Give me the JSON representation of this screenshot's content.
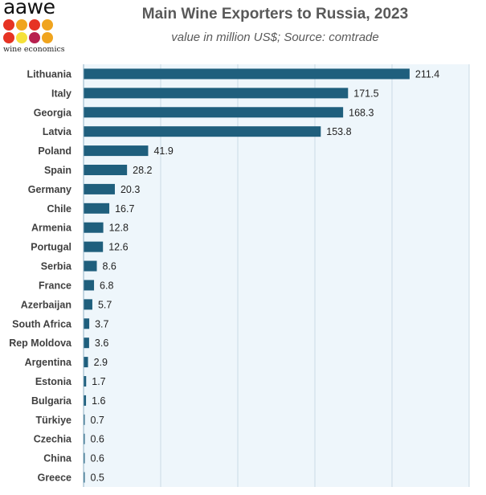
{
  "logo": {
    "name": "aawe",
    "tagline": "wine economics",
    "dot_colors": [
      "#e63323",
      "#f0a41e",
      "#e63323",
      "#f0a41e",
      "#e63323",
      "#f5e13a",
      "#b8214f",
      "#f0a41e"
    ]
  },
  "chart_data": {
    "type": "bar",
    "orientation": "horizontal",
    "title": "Main Wine Exporters to Russia, 2023",
    "subtitle": "value in million US$; Source: comtrade",
    "categories": [
      "Lithuania",
      "Italy",
      "Georgia",
      "Latvia",
      "Poland",
      "Spain",
      "Germany",
      "Chile",
      "Armenia",
      "Portugal",
      "Serbia",
      "France",
      "Azerbaijan",
      "South Africa",
      "Rep Moldova",
      "Argentina",
      "Estonia",
      "Bulgaria",
      "Türkiye",
      "Czechia",
      "China",
      "Greece"
    ],
    "values": [
      211.4,
      171.5,
      168.3,
      153.8,
      41.9,
      28.2,
      20.3,
      16.7,
      12.8,
      12.6,
      8.6,
      6.8,
      5.7,
      3.7,
      3.6,
      2.9,
      1.7,
      1.6,
      0.7,
      0.6,
      0.6,
      0.5
    ],
    "data_labels": [
      "211.4",
      "171.5",
      "168.3",
      "153.8",
      "41.9",
      "28.2",
      "20.3",
      "16.7",
      "12.8",
      "12.6",
      "8.6",
      "6.8",
      "5.7",
      "3.7",
      "3.6",
      "2.9",
      "1.7",
      "1.6",
      "0.7",
      "0.6",
      "0.6",
      "0.5"
    ],
    "xlim": [
      0,
      250
    ],
    "grid": true,
    "legend": "none",
    "bar_color": "#1f5f7d",
    "plot_background": "#eef6fb",
    "grid_color": "#c9dbe6"
  }
}
